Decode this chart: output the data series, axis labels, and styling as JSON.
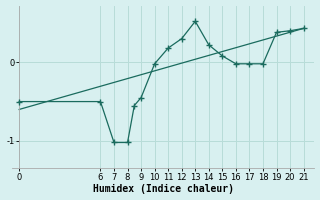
{
  "xlabel": "Humidex (Indice chaleur)",
  "bg_color": "#d8f0f0",
  "line_color": "#1a6b5e",
  "grid_color": "#b8dcd8",
  "line1_x": [
    0,
    6,
    7,
    8,
    8.5,
    9,
    10,
    11,
    12,
    13,
    14,
    15,
    16,
    17,
    18,
    19,
    20,
    21
  ],
  "line1_y": [
    -0.5,
    -0.5,
    -1.02,
    -1.02,
    -0.55,
    -0.45,
    -0.02,
    0.18,
    0.3,
    0.52,
    0.22,
    0.08,
    -0.02,
    -0.02,
    -0.02,
    0.38,
    0.4,
    0.43
  ],
  "line2_x": [
    0,
    21
  ],
  "line2_y": [
    -0.6,
    0.43
  ],
  "yticks": [
    -1,
    0
  ],
  "xticks": [
    0,
    6,
    7,
    8,
    9,
    10,
    11,
    12,
    13,
    14,
    15,
    16,
    17,
    18,
    19,
    20,
    21
  ],
  "xlim": [
    -0.5,
    21.8
  ],
  "ylim": [
    -1.35,
    0.72
  ]
}
